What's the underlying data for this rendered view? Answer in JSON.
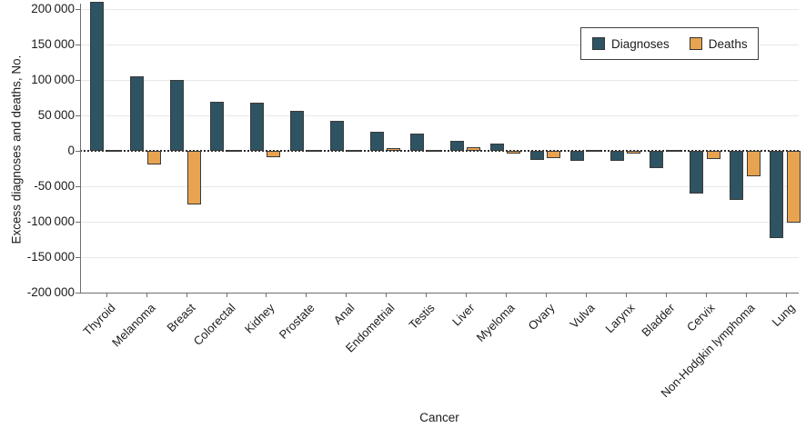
{
  "figure": {
    "y_axis_title": "Excess diagnoses and deaths, No.",
    "x_axis_title": "Cancer"
  },
  "legend": {
    "items": [
      {
        "label": "Diagnoses",
        "color": "#2E5363"
      },
      {
        "label": "Deaths",
        "color": "#E8A351"
      }
    ]
  },
  "chart_data": {
    "type": "bar",
    "title": "",
    "xlabel": "Cancer",
    "ylabel": "Excess diagnoses and deaths, No.",
    "categories": [
      "Thyroid",
      "Melanoma",
      "Breast",
      "Colorectal",
      "Kidney",
      "Prostate",
      "Anal",
      "Endometrial",
      "Testis",
      "Liver",
      "Myeloma",
      "Ovary",
      "Vulva",
      "Larynx",
      "Bladder",
      "Cervix",
      "Non-Hodgkin lymphoma",
      "Lung"
    ],
    "series": [
      {
        "name": "Diagnoses",
        "color": "#2E5363",
        "values": [
          210000,
          105000,
          99000,
          69000,
          67000,
          56000,
          42000,
          27000,
          24000,
          14000,
          10000,
          -13000,
          -14000,
          -15000,
          -25000,
          -61000,
          -70000,
          -123000
        ]
      },
      {
        "name": "Deaths",
        "color": "#E8A351",
        "values": [
          1000,
          -20000,
          -76000,
          1000,
          -9000,
          -2000,
          1000,
          3000,
          -1000,
          5000,
          -4000,
          -11000,
          -1000,
          -4000,
          -2000,
          -12000,
          -36000,
          -101000
        ]
      }
    ],
    "ylim": [
      -200000,
      200000
    ],
    "ytick_step": 50000,
    "yticks": [
      200000,
      150000,
      100000,
      50000,
      0,
      -50000,
      -100000,
      -150000,
      -200000
    ],
    "ytick_labels": [
      "200 000",
      "150 000",
      "100 000",
      "50 000",
      "0",
      "-50 000",
      "-100 000",
      "-150 000",
      "-200 000"
    ],
    "grid": "horizontal",
    "zero_line": "dotted",
    "legend_position": "top-right"
  }
}
